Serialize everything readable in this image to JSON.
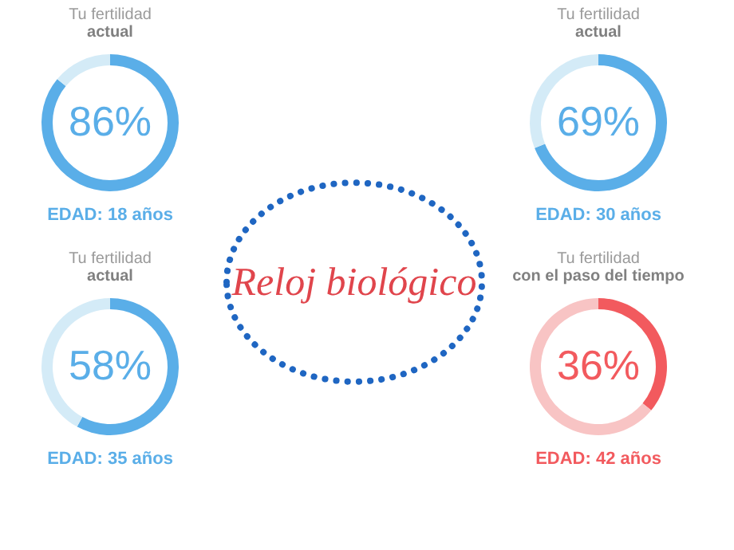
{
  "chart_data": [
    {
      "type": "donut",
      "title": "Tu fertilidad",
      "subtitle": "actual",
      "categories": [
        null,
        null
      ],
      "values": [
        86,
        14
      ],
      "colors": [
        "#5aaee8",
        "#d4ebf7"
      ],
      "value_labels": [
        "86%",
        null
      ],
      "annotations": [
        "EDAD: 18 años"
      ]
    },
    {
      "type": "donut",
      "title": "Tu fertilidad",
      "subtitle": "actual",
      "categories": [
        null,
        null
      ],
      "values": [
        69,
        31
      ],
      "colors": [
        "#5aaee8",
        "#d4ebf7"
      ],
      "value_labels": [
        "69%",
        null
      ],
      "annotations": [
        "EDAD: 30 años"
      ]
    },
    {
      "type": "other",
      "title": "Reloj biológico"
    },
    {
      "type": "donut",
      "title": "Tu fertilidad",
      "subtitle": "actual",
      "categories": [
        null,
        null
      ],
      "values": [
        58,
        42
      ],
      "colors": [
        "#5aaee8",
        "#d4ebf7"
      ],
      "value_labels": [
        "58%",
        null
      ],
      "annotations": [
        "EDAD: 35 años"
      ]
    },
    {
      "type": "donut",
      "title": "Tu fertilidad",
      "subtitle": "con el paso del tiempo",
      "categories": [
        null,
        null
      ],
      "values": [
        36,
        64
      ],
      "colors": [
        "#f25a5e",
        "#f8c4c4"
      ],
      "value_labels": [
        "36%",
        null
      ],
      "annotations": [
        "EDAD: 42 años"
      ]
    }
  ]
}
